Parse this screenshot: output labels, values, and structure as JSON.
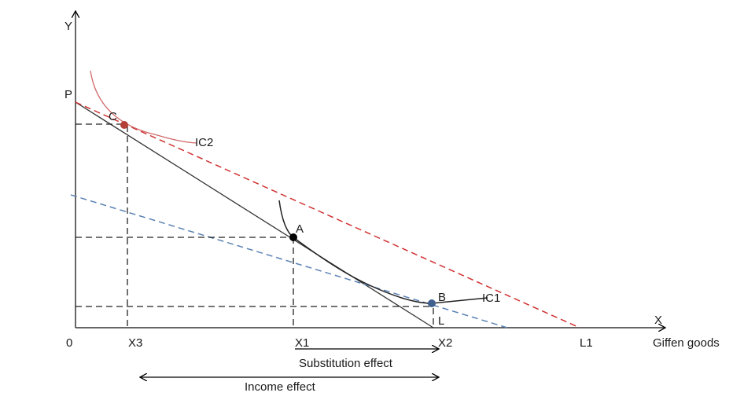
{
  "axes": {
    "y_label": "Y",
    "x_label": "X",
    "x_name": "Giffen goods",
    "origin": "0"
  },
  "points": {
    "P": "P",
    "C": "C",
    "A": "A",
    "B": "B",
    "L": "L",
    "L1": "L1"
  },
  "curves": {
    "ic1": "IC1",
    "ic2": "IC2"
  },
  "x_ticks": [
    "X3",
    "X1",
    "X2"
  ],
  "effects": {
    "substitution": "Substitution effect",
    "income": "Income effect"
  },
  "colors": {
    "budget_original": "#333333",
    "budget_new": "#d03030",
    "compensated": "#5a82b4",
    "ic2": "#d06a6a",
    "point_c": "#b5403a",
    "point_b": "#3f5f8f"
  }
}
